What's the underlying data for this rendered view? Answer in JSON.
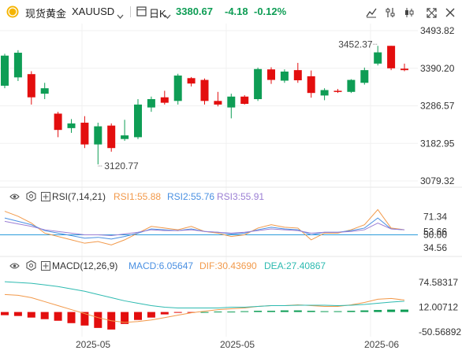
{
  "header": {
    "symbol_name": "现货黄金",
    "symbol_code": "XAUUSD",
    "timeframe": "日K",
    "price": "3380.67",
    "change": "-4.18",
    "change_pct": "-0.12%",
    "accent_up": "#e30e0e",
    "accent_down": "#0e9d55",
    "icons": [
      "coin-icon",
      "chevron-down-icon",
      "calendar-icon",
      "chevron-down-icon",
      "line-chart-icon",
      "settings-sliders-icon",
      "candles-icon",
      "expand-icon",
      "close-icon"
    ]
  },
  "rsi": {
    "title": "RSI(7,14,21)",
    "rsi1_label": "RSI1:55.88",
    "rsi2_label": "RSI2:55.76",
    "rsi3_label": "RSI3:55.91",
    "colors": {
      "rsi1": "#f2994a",
      "rsi2": "#4a90e2",
      "rsi3": "#9b7fd4",
      "mid": "#2d9cdb"
    }
  },
  "macd": {
    "title": "MACD(12,26,9)",
    "macd_label": "MACD:6.05647",
    "dif_label": "DIF:30.43690",
    "dea_label": "DEA:27.40867",
    "colors": {
      "macd": "#4a90e2",
      "dif": "#f2994a",
      "dea": "#2dbab0"
    }
  },
  "chart_data": [
    {
      "type": "candlestick",
      "title": "现货黄金 XAUUSD 日K",
      "y_ticks": [
        "3493.82",
        "3390.20",
        "3286.57",
        "3182.95",
        "3079.32"
      ],
      "ylim": [
        3079.32,
        3493.82
      ],
      "x_ticks": [
        "2025-05",
        "2025-05",
        "2025-06"
      ],
      "annotations": [
        "3452.37",
        "3120.77"
      ],
      "candles": [
        {
          "o": 3342,
          "h": 3430,
          "l": 3335,
          "c": 3425
        },
        {
          "o": 3365,
          "h": 3440,
          "l": 3355,
          "c": 3433
        },
        {
          "o": 3374,
          "h": 3382,
          "l": 3290,
          "c": 3310
        },
        {
          "o": 3320,
          "h": 3350,
          "l": 3305,
          "c": 3335
        },
        {
          "o": 3265,
          "h": 3270,
          "l": 3200,
          "c": 3220
        },
        {
          "o": 3225,
          "h": 3250,
          "l": 3212,
          "c": 3238
        },
        {
          "o": 3240,
          "h": 3258,
          "l": 3170,
          "c": 3180
        },
        {
          "o": 3180,
          "h": 3240,
          "l": 3125,
          "c": 3230
        },
        {
          "o": 3232,
          "h": 3238,
          "l": 3160,
          "c": 3170
        },
        {
          "o": 3195,
          "h": 3248,
          "l": 3190,
          "c": 3205
        },
        {
          "o": 3200,
          "h": 3305,
          "l": 3195,
          "c": 3290
        },
        {
          "o": 3282,
          "h": 3312,
          "l": 3270,
          "c": 3305
        },
        {
          "o": 3310,
          "h": 3328,
          "l": 3290,
          "c": 3295
        },
        {
          "o": 3300,
          "h": 3375,
          "l": 3290,
          "c": 3370
        },
        {
          "o": 3363,
          "h": 3366,
          "l": 3340,
          "c": 3348
        },
        {
          "o": 3358,
          "h": 3362,
          "l": 3290,
          "c": 3300
        },
        {
          "o": 3300,
          "h": 3325,
          "l": 3285,
          "c": 3290
        },
        {
          "o": 3282,
          "h": 3320,
          "l": 3252,
          "c": 3312
        },
        {
          "o": 3312,
          "h": 3316,
          "l": 3290,
          "c": 3292
        },
        {
          "o": 3305,
          "h": 3392,
          "l": 3300,
          "c": 3388
        },
        {
          "o": 3387,
          "h": 3393,
          "l": 3347,
          "c": 3358
        },
        {
          "o": 3356,
          "h": 3387,
          "l": 3350,
          "c": 3381
        },
        {
          "o": 3385,
          "h": 3405,
          "l": 3350,
          "c": 3357
        },
        {
          "o": 3368,
          "h": 3384,
          "l": 3309,
          "c": 3322
        },
        {
          "o": 3315,
          "h": 3335,
          "l": 3302,
          "c": 3330
        },
        {
          "o": 3328,
          "h": 3333,
          "l": 3322,
          "c": 3326
        },
        {
          "o": 3325,
          "h": 3360,
          "l": 3322,
          "c": 3358
        },
        {
          "o": 3350,
          "h": 3392,
          "l": 3345,
          "c": 3385
        },
        {
          "o": 3403,
          "h": 3452,
          "l": 3398,
          "c": 3434
        },
        {
          "o": 3452,
          "h": 3452,
          "l": 3385,
          "c": 3390
        },
        {
          "o": 3389,
          "h": 3403,
          "l": 3382,
          "c": 3385
        }
      ]
    },
    {
      "type": "line",
      "title": "RSI(7,14,21)",
      "y_ticks": [
        "71.34",
        "53.66",
        "50.00",
        "34.56"
      ],
      "ylim": [
        28,
        86
      ],
      "series": [
        {
          "name": "RSI1",
          "values": [
            78,
            72,
            64,
            52,
            48,
            44,
            40,
            42,
            38,
            44,
            52,
            60,
            58,
            56,
            60,
            54,
            52,
            48,
            50,
            58,
            62,
            59,
            58,
            44,
            52,
            52,
            56,
            62,
            80,
            58,
            56
          ]
        },
        {
          "name": "RSI2",
          "values": [
            70,
            66,
            62,
            55,
            52,
            49,
            46,
            47,
            45,
            48,
            52,
            57,
            56,
            55,
            57,
            54,
            53,
            51,
            52,
            56,
            59,
            57,
            56,
            50,
            53,
            53,
            55,
            58,
            70,
            57,
            56
          ]
        },
        {
          "name": "RSI3",
          "values": [
            66,
            63,
            60,
            56,
            54,
            52,
            50,
            50,
            49,
            51,
            53,
            56,
            55,
            55,
            56,
            54,
            53,
            52,
            53,
            55,
            57,
            56,
            55,
            52,
            53,
            53,
            54,
            56,
            64,
            57,
            56
          ]
        }
      ]
    },
    {
      "type": "bar+line",
      "title": "MACD(12,26,9)",
      "y_ticks": [
        "74.58317",
        "12.00712",
        "-50.56892"
      ],
      "ylim": [
        -62,
        96
      ],
      "series": [
        {
          "name": "MACD",
          "values": [
            -8,
            -10,
            -14,
            -18,
            -22,
            -28,
            -34,
            -40,
            -44,
            -30,
            -20,
            -14,
            -6,
            -2,
            -1,
            0,
            1,
            1,
            2,
            3,
            3,
            4,
            4,
            3,
            2,
            2,
            3,
            4,
            5,
            6,
            6
          ]
        },
        {
          "name": "DIF",
          "values": [
            44,
            42,
            36,
            26,
            16,
            6,
            -4,
            -14,
            -22,
            -26,
            -24,
            -20,
            -14,
            -8,
            -2,
            2,
            6,
            8,
            10,
            14,
            16,
            16,
            18,
            16,
            14,
            14,
            18,
            24,
            32,
            34,
            30
          ]
        },
        {
          "name": "DEA",
          "values": [
            76,
            74,
            72,
            68,
            64,
            58,
            52,
            44,
            36,
            28,
            22,
            16,
            12,
            10,
            10,
            10,
            10,
            12,
            12,
            14,
            16,
            16,
            17,
            17,
            17,
            16,
            17,
            19,
            22,
            25,
            27
          ]
        }
      ]
    }
  ]
}
